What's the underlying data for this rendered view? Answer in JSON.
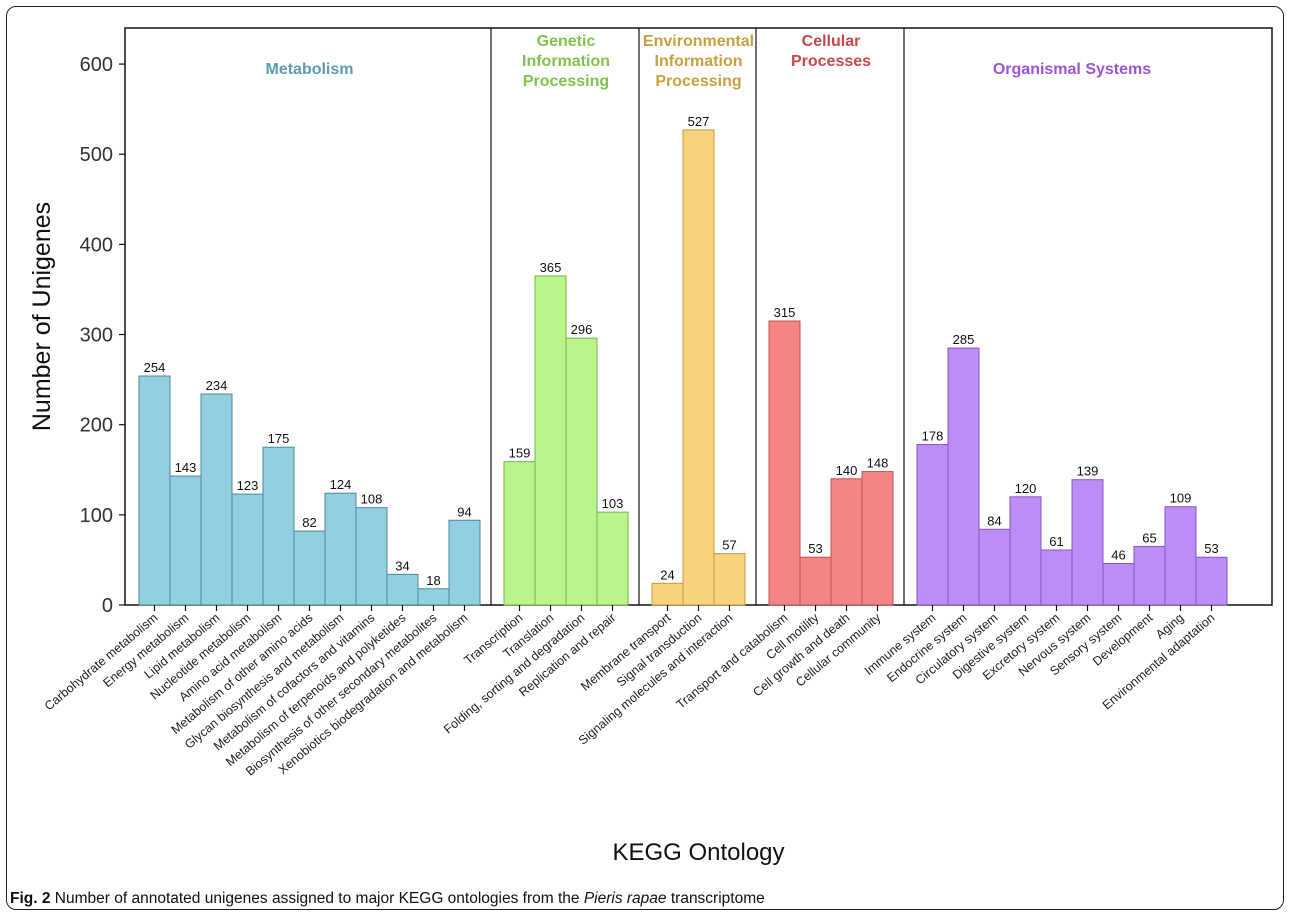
{
  "chart_data": {
    "type": "bar",
    "ylabel": "Number of Unigenes",
    "xlabel": "KEGG Ontology",
    "ylim": [
      0,
      640
    ],
    "yticks": [
      0,
      100,
      200,
      300,
      400,
      500,
      600
    ],
    "groups": [
      {
        "name": "Metabolism",
        "color": "#93cfe1",
        "stroke": "#4a8aa0",
        "label_color": "#5a9cb0",
        "categories": [
          "Carbohydrate metabolism",
          "Energy metabolism",
          "Lipid metabolism",
          "Nucleotide metabolism",
          "Amino acid metabolism",
          "Metabolism of other amino acids",
          "Glycan biosynthesis and metabolism",
          "Metabolism of cofactors and vitamins",
          "Metabolism of terpenoids and polyketides",
          "Biosynthesis of other secondary metabolites",
          "Xenobiotics biodegradation and metabolism"
        ],
        "values": [
          254,
          143,
          234,
          123,
          175,
          82,
          124,
          108,
          34,
          18,
          94
        ]
      },
      {
        "name": "Genetic Information Processing",
        "name_lines": [
          "Genetic",
          "Information",
          "Processing"
        ],
        "color": "#b9f58a",
        "stroke": "#6fb845",
        "label_color": "#7ec44d",
        "categories": [
          "Transcription",
          "Translation",
          "Folding, sorting and degradation",
          "Replication and repair"
        ],
        "values": [
          159,
          365,
          296,
          103
        ]
      },
      {
        "name": "Environmental Information Processing",
        "name_lines": [
          "Environmental",
          "Information",
          "Processing"
        ],
        "color": "#f8d27e",
        "stroke": "#c99a3a",
        "label_color": "#c9a040",
        "categories": [
          "Membrane transport",
          "Signal transduction",
          "Signaling molecules and interaction"
        ],
        "values": [
          24,
          527,
          57
        ]
      },
      {
        "name": "Cellular Processes",
        "name_lines": [
          "Cellular",
          "Processes"
        ],
        "color": "#f48583",
        "stroke": "#c44f4d",
        "label_color": "#c9474a",
        "categories": [
          "Transport and catabolism",
          "Cell motility",
          "Cell growth and death",
          "Cellular community"
        ],
        "values": [
          315,
          53,
          140,
          148
        ]
      },
      {
        "name": "Organismal Systems",
        "color": "#bb8df5",
        "stroke": "#8a55c9",
        "label_color": "#9b55dd",
        "categories": [
          "Immune system",
          "Endocrine system",
          "Circulatory system",
          "Digestive system",
          "Excretory system",
          "Nervous system",
          "Sensory system",
          "Development",
          "Aging",
          "Environmental adaptation"
        ],
        "values": [
          178,
          285,
          84,
          120,
          61,
          139,
          46,
          65,
          109,
          53
        ]
      }
    ]
  },
  "caption": {
    "fig_label": "Fig. 2",
    "text_before": " Number of annotated unigenes assigned to major KEGG ontologies from the ",
    "species": "Pieris rapae",
    "text_after": " transcriptome"
  }
}
